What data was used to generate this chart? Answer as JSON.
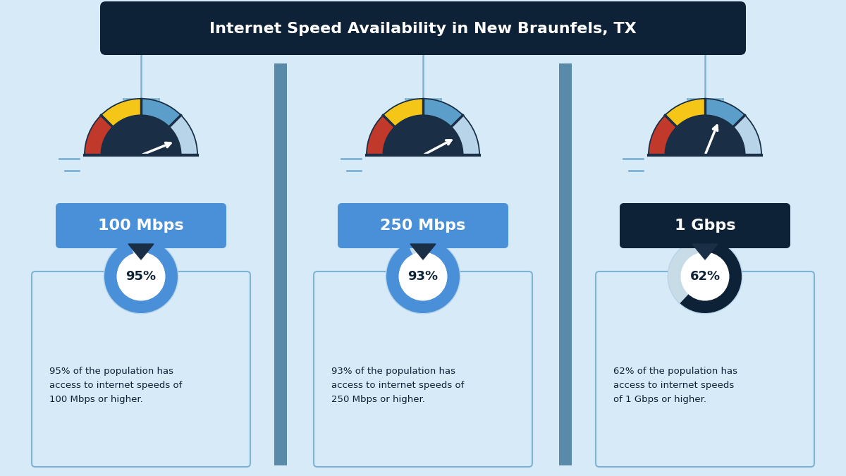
{
  "title": "Internet Speed Availability in New Braunfels, TX",
  "title_bg": "#0d2137",
  "title_color": "#ffffff",
  "bg_color": "#d6eaf8",
  "card_bg": "#d6eaf8",
  "panel_bg": "#d6eaf8",
  "speeds": [
    "100 Mbps",
    "250 Mbps",
    "1 Gbps"
  ],
  "percentages": [
    95,
    93,
    62
  ],
  "descriptions": [
    "95% of the population has\naccess to internet speeds of\n100 Mbps or higher.",
    "93% of the population has\naccess to internet speeds of\n250 Mbps or higher.",
    "62% of the population has\naccess to internet speeds\nof 1 Gbps or higher."
  ],
  "speed_label_bg": [
    "#4a90d9",
    "#4a90d9",
    "#0d2137"
  ],
  "speed_label_color": "#ffffff",
  "gauge_needle_colors": [
    "#ffffff",
    "#ffffff",
    "#ffffff"
  ],
  "gauge_outer_ring": "#1a2e45",
  "gauge_seg_colors": [
    [
      "#b8d4e8",
      "#5b9ec9",
      "#f5c518",
      "#c0392b"
    ],
    [
      "#b8d4e8",
      "#5b9ec9",
      "#f5c518",
      "#c0392b"
    ],
    [
      "#b8d4e8",
      "#5b9ec9",
      "#f5c518",
      "#c0392b"
    ]
  ],
  "donut_colors": [
    "#4a90d9",
    "#b8d4e8"
  ],
  "donut_colors_1gbps": [
    "#0d2137",
    "#b8d4e8"
  ],
  "donut_stroke": "#1a2e45",
  "connector_color": "#7fb3d3",
  "connector_dark": "#1a2e45",
  "separator_color": "#5a8aaa"
}
